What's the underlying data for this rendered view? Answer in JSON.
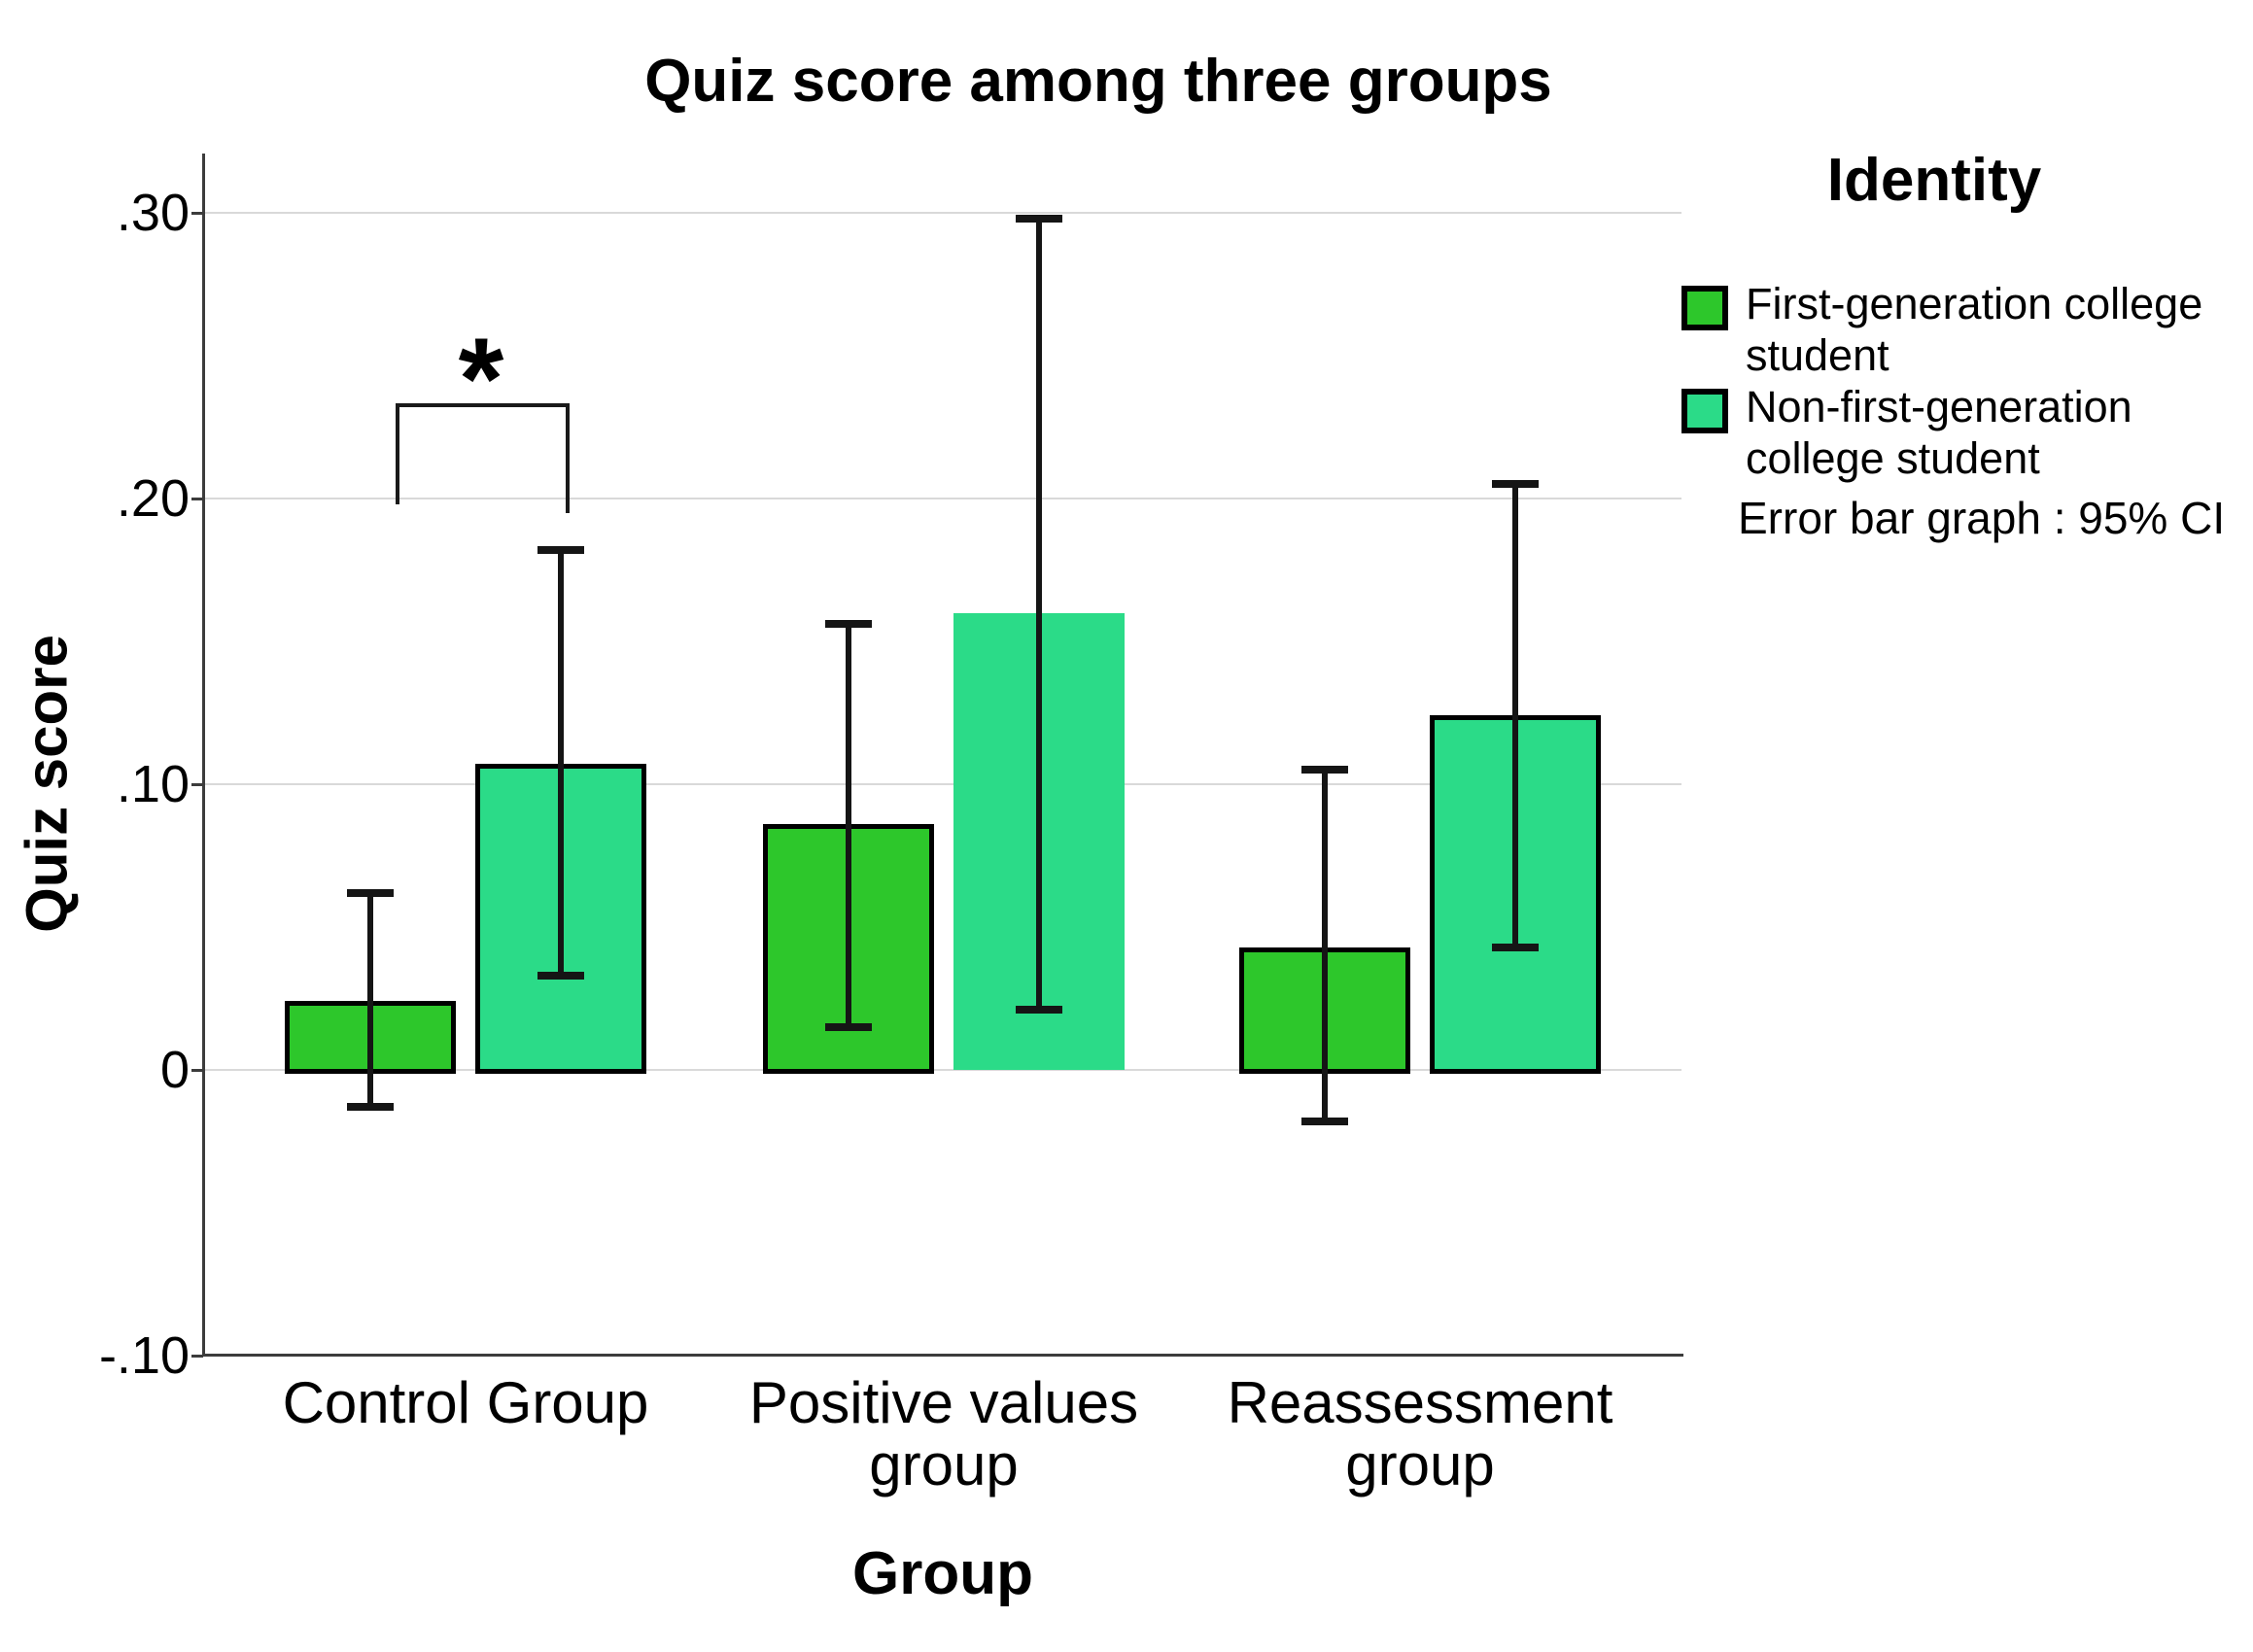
{
  "title": "Quiz score among three groups",
  "axes": {
    "y_label": "Quiz score",
    "x_label": "Group"
  },
  "legend": {
    "title": "Identity",
    "items": [
      {
        "label": "First-generation college student",
        "color": "#2dc72b"
      },
      {
        "label": "Non-first-generation college student",
        "color": "#2bdb88"
      }
    ],
    "note": "Error bar graph : 95% CI"
  },
  "significance": {
    "symbol": "*",
    "location": "Control Group: between first-generation and non-first-generation bars"
  },
  "chart_data": {
    "type": "bar",
    "title": "Quiz score among three groups",
    "xlabel": "Group",
    "ylabel": "Quiz score",
    "ylim": [
      -0.1,
      0.32
    ],
    "y_tick_values": [
      0.3,
      0.2,
      0.1,
      0,
      -0.1
    ],
    "y_tick_labels": [
      ".30",
      ".20",
      ".10",
      "0",
      "-.10"
    ],
    "categories": [
      "Control Group",
      "Positive values group",
      "Reassessment group"
    ],
    "series": [
      {
        "name": "First-generation college student",
        "color": "#2dc72b",
        "values": [
          0.024,
          0.086,
          0.043
        ],
        "ci_low": [
          -0.013,
          0.015,
          -0.018
        ],
        "ci_high": [
          0.062,
          0.156,
          0.105
        ],
        "borderless_categories": []
      },
      {
        "name": "Non-first-generation college student",
        "color": "#2bdb88",
        "values": [
          0.107,
          0.16,
          0.124
        ],
        "ci_low": [
          0.033,
          0.021,
          0.043
        ],
        "ci_high": [
          0.182,
          0.298,
          0.205
        ],
        "borderless_categories": [
          1
        ]
      }
    ],
    "error_bars": "95% CI",
    "grid": true,
    "legend_position": "right",
    "annotations": [
      {
        "type": "significance-bracket",
        "category": "Control Group",
        "label": "*"
      }
    ]
  }
}
